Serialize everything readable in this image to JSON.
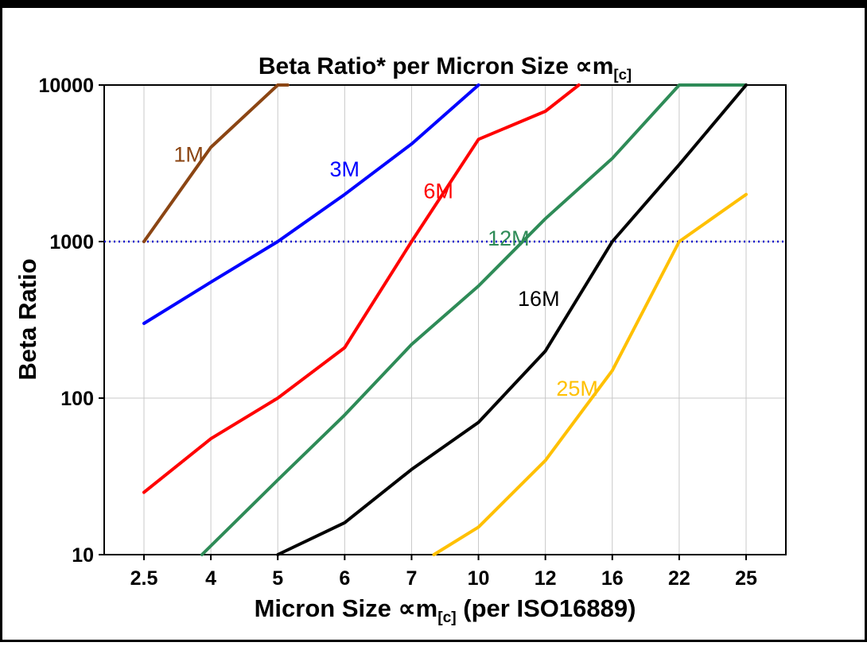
{
  "page": {
    "background": "#FFFFFF",
    "frame_color": "#000000"
  },
  "chart_data": {
    "type": "line",
    "title_main": "Beta Ratio* per Micron Size ∝m",
    "title_sub": "[c]",
    "ylabel": "Beta Ratio",
    "xlabel_main": "Micron Size ∝m",
    "xlabel_sub": "[c]",
    "xlabel_suffix": " (per ISO16889)",
    "y_scale": "log",
    "ylim": [
      10,
      10000
    ],
    "y_ticks": [
      10,
      100,
      1000,
      10000
    ],
    "y_tick_labels": [
      "10",
      "100",
      "1000",
      "10000"
    ],
    "x_categories": [
      2.5,
      4,
      5,
      6,
      7,
      10,
      12,
      16,
      22,
      25
    ],
    "x_tick_labels": [
      "2.5",
      "4",
      "5",
      "6",
      "7",
      "10",
      "12",
      "16",
      "22",
      "25"
    ],
    "grid": true,
    "grid_color": "#C8C8C8",
    "legend": "inline-labels",
    "reference_line": {
      "y": 1000,
      "color": "#0000CC",
      "style": "dotted"
    },
    "series": [
      {
        "name": "1M",
        "color": "#8B4513",
        "label_pos": [
          3.5,
          3600
        ],
        "points": [
          [
            2.5,
            1000
          ],
          [
            4,
            4000
          ],
          [
            5,
            10000
          ],
          [
            5.15,
            10000
          ]
        ]
      },
      {
        "name": "3M",
        "color": "#0000FF",
        "label_pos": [
          6,
          2900
        ],
        "points": [
          [
            2.5,
            300
          ],
          [
            4,
            550
          ],
          [
            5,
            1000
          ],
          [
            6,
            2000
          ],
          [
            7,
            4200
          ],
          [
            10,
            10000
          ]
        ]
      },
      {
        "name": "6M",
        "color": "#FF0000",
        "label_pos": [
          8.2,
          2100
        ],
        "points": [
          [
            2.5,
            25
          ],
          [
            4,
            55
          ],
          [
            5,
            100
          ],
          [
            6,
            210
          ],
          [
            7,
            1000
          ],
          [
            10,
            4500
          ],
          [
            12,
            6800
          ],
          [
            14,
            10000
          ]
        ]
      },
      {
        "name": "12M",
        "color": "#2E8B57",
        "label_pos": [
          10.9,
          1050
        ],
        "points": [
          [
            3.8,
            10
          ],
          [
            5,
            30
          ],
          [
            6,
            78
          ],
          [
            7,
            220
          ],
          [
            10,
            520
          ],
          [
            12,
            1400
          ],
          [
            16,
            3400
          ],
          [
            22,
            10000
          ],
          [
            25,
            10000
          ]
        ]
      },
      {
        "name": "16M",
        "color": "#000000",
        "label_pos": [
          11.8,
          430
        ],
        "points": [
          [
            5,
            10
          ],
          [
            6,
            16
          ],
          [
            7,
            35
          ],
          [
            10,
            70
          ],
          [
            12,
            200
          ],
          [
            16,
            1000
          ],
          [
            22,
            3100
          ],
          [
            25,
            10000
          ]
        ]
      },
      {
        "name": "25M",
        "color": "#FFC000",
        "label_pos": [
          13.9,
          115
        ],
        "points": [
          [
            8,
            10
          ],
          [
            10,
            15
          ],
          [
            12,
            40
          ],
          [
            16,
            150
          ],
          [
            22,
            1000
          ],
          [
            25,
            2000
          ]
        ]
      }
    ]
  }
}
